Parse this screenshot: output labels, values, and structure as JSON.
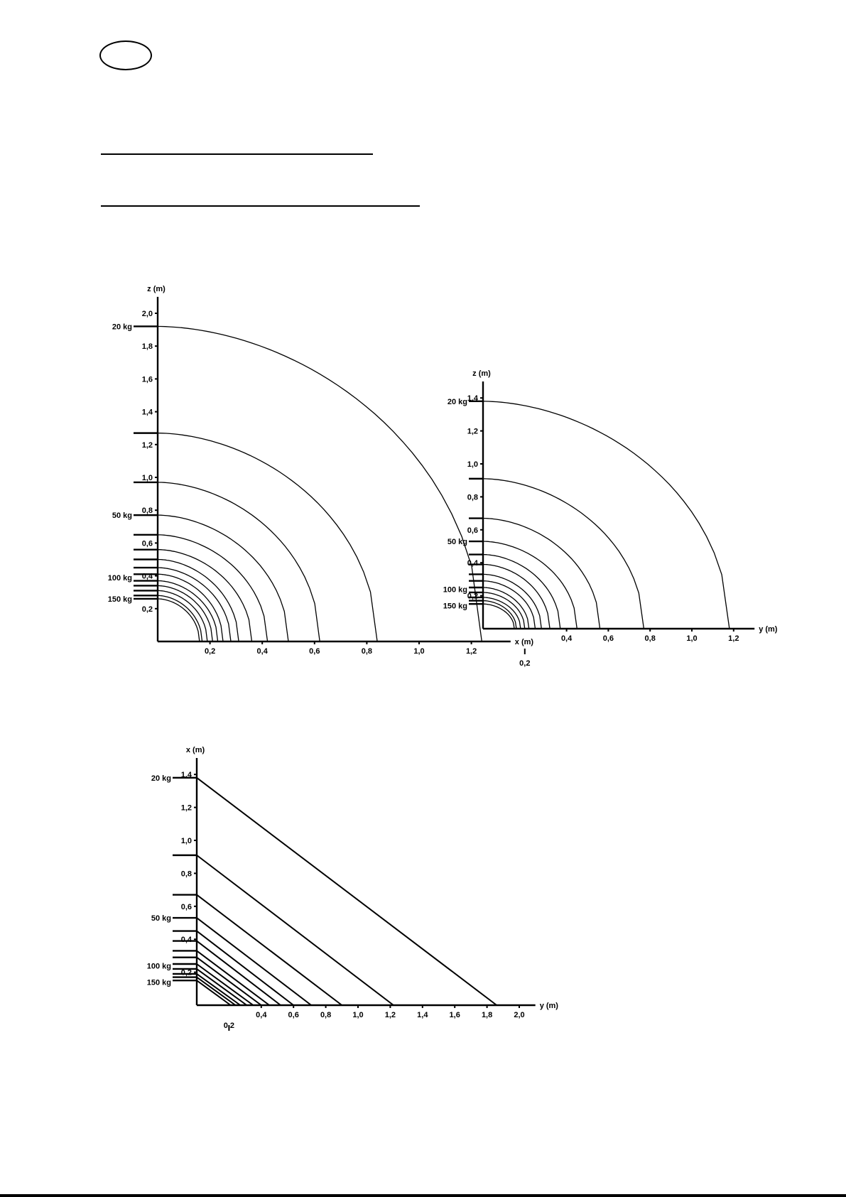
{
  "page": {
    "badge": "",
    "bottom_strip": ""
  },
  "chart_data": [
    {
      "type": "line",
      "xlabel": "x (m)",
      "ylabel": "z (m)",
      "xlim": [
        0,
        1.35
      ],
      "ylim": [
        0,
        2.1
      ],
      "x_ticks": [
        "0,2",
        "0,4",
        "0,6",
        "0,8",
        "1,0",
        "1,2"
      ],
      "y_ticks": [
        "0,2",
        "0,4",
        "0,6",
        "0,8",
        "1,0",
        "1,2",
        "1,4",
        "1,6",
        "1,8",
        "2,0"
      ],
      "load_labels": [
        {
          "label": "20 kg",
          "at": 1.92
        },
        {
          "label": "50 kg",
          "at": 0.77
        },
        {
          "label": "100 kg",
          "at": 0.39
        },
        {
          "label": "150 kg",
          "at": 0.26
        }
      ],
      "series": [
        {
          "x_max": 1.24,
          "z_max": 1.92
        },
        {
          "x_max": 0.84,
          "z_max": 1.27
        },
        {
          "x_max": 0.62,
          "z_max": 0.97
        },
        {
          "x_max": 0.5,
          "z_max": 0.77
        },
        {
          "x_max": 0.42,
          "z_max": 0.65
        },
        {
          "x_max": 0.36,
          "z_max": 0.56
        },
        {
          "x_max": 0.31,
          "z_max": 0.5
        },
        {
          "x_max": 0.28,
          "z_max": 0.45
        },
        {
          "x_max": 0.25,
          "z_max": 0.41
        },
        {
          "x_max": 0.23,
          "z_max": 0.37
        },
        {
          "x_max": 0.21,
          "z_max": 0.34
        },
        {
          "x_max": 0.19,
          "z_max": 0.31
        },
        {
          "x_max": 0.17,
          "z_max": 0.28
        },
        {
          "x_max": 0.16,
          "z_max": 0.26
        }
      ]
    },
    {
      "type": "line",
      "xlabel": "y (m)",
      "ylabel": "z (m)",
      "xlim": [
        0,
        1.3
      ],
      "ylim": [
        0,
        1.5
      ],
      "x_ticks": [
        "0,4",
        "0,6",
        "0,8",
        "1,0",
        "1,2"
      ],
      "x_below_label": "0,2",
      "y_ticks": [
        "0,2",
        "0,4",
        "0,6",
        "0,8",
        "1,0",
        "1,2",
        "1,4"
      ],
      "load_labels": [
        {
          "label": "20 kg",
          "at": 1.38
        },
        {
          "label": "50 kg",
          "at": 0.53
        },
        {
          "label": "100 kg",
          "at": 0.24
        },
        {
          "label": "150 kg",
          "at": 0.14
        }
      ],
      "series": [
        {
          "x_max": 1.18,
          "z_max": 1.38
        },
        {
          "x_max": 0.77,
          "z_max": 0.91
        },
        {
          "x_max": 0.56,
          "z_max": 0.67
        },
        {
          "x_max": 0.45,
          "z_max": 0.53
        },
        {
          "x_max": 0.37,
          "z_max": 0.45
        },
        {
          "x_max": 0.32,
          "z_max": 0.39
        },
        {
          "x_max": 0.28,
          "z_max": 0.33
        },
        {
          "x_max": 0.25,
          "z_max": 0.29
        },
        {
          "x_max": 0.22,
          "z_max": 0.25
        },
        {
          "x_max": 0.2,
          "z_max": 0.22
        },
        {
          "x_max": 0.18,
          "z_max": 0.19
        },
        {
          "x_max": 0.16,
          "z_max": 0.17
        },
        {
          "x_max": 0.15,
          "z_max": 0.15
        }
      ]
    },
    {
      "type": "line",
      "xlabel": "y (m)",
      "ylabel": "x (m)",
      "xlim": [
        0,
        2.1
      ],
      "ylim": [
        0,
        1.5
      ],
      "x_ticks": [
        "0,4",
        "0,6",
        "0,8",
        "1,0",
        "1,2",
        "1,4",
        "1,6",
        "1,8",
        "2,0"
      ],
      "x_below_label": "0,2",
      "y_ticks": [
        "0,2",
        "0,4",
        "0,6",
        "0,8",
        "1,0",
        "1,2",
        "1,4"
      ],
      "load_labels": [
        {
          "label": "20 kg",
          "at": 1.38
        },
        {
          "label": "50 kg",
          "at": 0.53
        },
        {
          "label": "100 kg",
          "at": 0.24
        },
        {
          "label": "150 kg",
          "at": 0.14
        }
      ],
      "series": [
        {
          "x_max": 1.86,
          "z_max": 1.38
        },
        {
          "x_max": 1.22,
          "z_max": 0.91
        },
        {
          "x_max": 0.9,
          "z_max": 0.67
        },
        {
          "x_max": 0.71,
          "z_max": 0.53
        },
        {
          "x_max": 0.6,
          "z_max": 0.45
        },
        {
          "x_max": 0.52,
          "z_max": 0.39
        },
        {
          "x_max": 0.45,
          "z_max": 0.33
        },
        {
          "x_max": 0.4,
          "z_max": 0.29
        },
        {
          "x_max": 0.35,
          "z_max": 0.25
        },
        {
          "x_max": 0.31,
          "z_max": 0.22
        },
        {
          "x_max": 0.27,
          "z_max": 0.19
        },
        {
          "x_max": 0.24,
          "z_max": 0.17
        },
        {
          "x_max": 0.21,
          "z_max": 0.15
        }
      ]
    }
  ]
}
